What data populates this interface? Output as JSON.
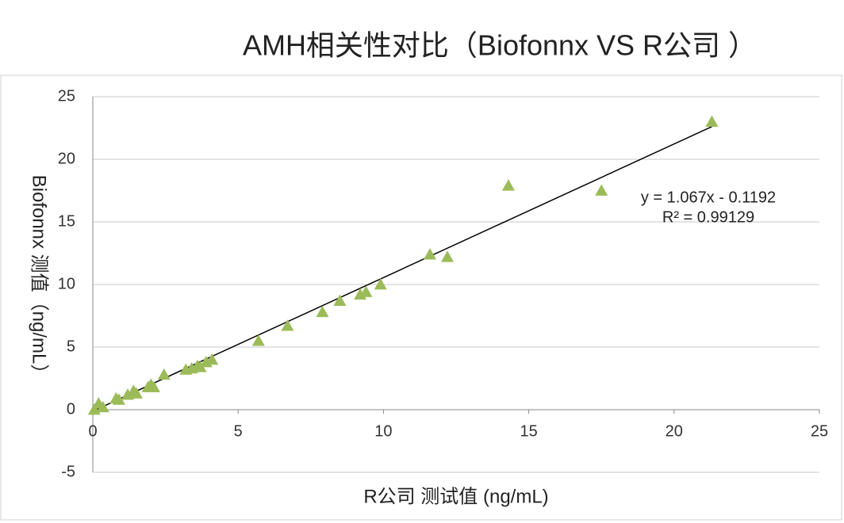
{
  "chart_data": {
    "type": "scatter",
    "title": "AMH相关性对比（Biofonnx VS R公司 ）",
    "x_label": "R公司 测试值 (ng/mL)",
    "y_label": "Biofonnx 测值（ng/mL）",
    "x": [
      0.05,
      0.2,
      0.35,
      0.8,
      0.9,
      1.2,
      1.4,
      1.5,
      1.9,
      2.0,
      2.1,
      2.45,
      3.2,
      3.4,
      3.6,
      3.7,
      3.9,
      4.1,
      5.7,
      6.7,
      7.9,
      8.5,
      9.2,
      9.4,
      9.9,
      11.6,
      12.2,
      14.3,
      17.5,
      21.3
    ],
    "values": [
      0.0,
      0.5,
      0.2,
      0.9,
      0.8,
      1.2,
      1.5,
      1.3,
      1.8,
      2.0,
      1.8,
      2.8,
      3.2,
      3.3,
      3.5,
      3.4,
      3.8,
      4.0,
      5.5,
      6.7,
      7.8,
      8.7,
      9.2,
      9.4,
      10.0,
      12.4,
      12.2,
      17.9,
      17.5,
      23.0
    ],
    "color": "#9bbb59",
    "trendline": {
      "slope": 1.067,
      "intercept": -0.1192,
      "label": "y = 1.067x - 0.1192",
      "r_squared": 0.99129,
      "r_squared_label": "R² = 0.99129",
      "color": "#000000"
    },
    "xlim": [
      0,
      25
    ],
    "xticks": [
      0,
      5,
      10,
      15,
      20,
      25
    ],
    "ylim": [
      -5,
      25
    ],
    "yticks": [
      -5,
      0,
      5,
      10,
      15,
      20,
      25
    ],
    "grid": true
  }
}
